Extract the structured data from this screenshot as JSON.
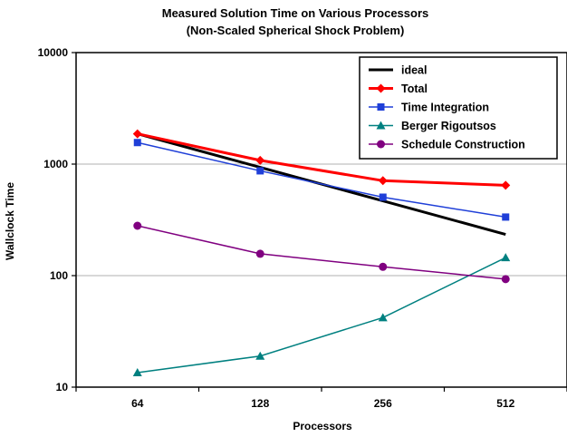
{
  "chart_data": {
    "type": "line",
    "title": "Measured Solution Time on Various Processors",
    "subtitle": "(Non-Scaled Spherical Shock Problem)",
    "xlabel": "Processors",
    "ylabel": "Wallclock Time",
    "y_scale": "log",
    "ylim": [
      10,
      10000
    ],
    "y_ticks": [
      "10",
      "100",
      "1000",
      "10000"
    ],
    "categories": [
      "64",
      "128",
      "256",
      "512"
    ],
    "grid": "horizontal major gridlines",
    "legend_position": "top-right",
    "series": [
      {
        "name": "ideal",
        "color": "#000000",
        "marker": "none",
        "values": [
          1870,
          935,
          468,
          234
        ]
      },
      {
        "name": "Total",
        "color": "#ff0000",
        "marker": "diamond",
        "values": [
          1870,
          1080,
          710,
          645
        ]
      },
      {
        "name": "Time Integration",
        "color": "#1f3fd8",
        "marker": "square",
        "values": [
          1560,
          870,
          505,
          335
        ]
      },
      {
        "name": "Berger Rigoutsos",
        "color": "#008080",
        "marker": "triangle",
        "values": [
          13.5,
          19,
          42,
          145
        ]
      },
      {
        "name": "Schedule Construction",
        "color": "#800080",
        "marker": "circle",
        "values": [
          280,
          157,
          120,
          93
        ]
      }
    ]
  }
}
